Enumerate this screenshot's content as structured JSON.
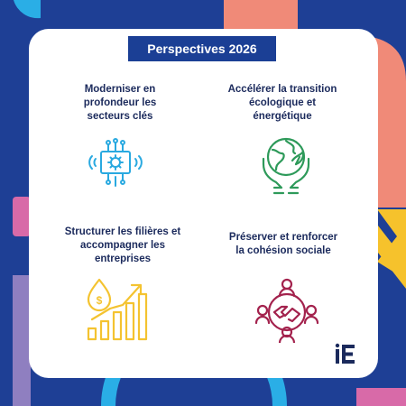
{
  "title": "Perspectives 2026",
  "quadrants": [
    {
      "label": "Moderniser en profondeur les secteurs clés",
      "icon": "digital-circuit-gear-icon",
      "color": "#29a9e0"
    },
    {
      "label": "Accélérer la transition écologique et énergétique",
      "icon": "globe-leaf-hands-icon",
      "color": "#2e9a5a"
    },
    {
      "label": "Structurer les filières et accompagner les entreprises",
      "icon": "money-growth-chart-icon",
      "color": "#f4c330"
    },
    {
      "label": "Préserver et renforcer la cohésion sociale",
      "icon": "handshake-community-icon",
      "color": "#a3224d"
    }
  ],
  "logo": {
    "text": "iE",
    "icon": "ie-logo-icon"
  },
  "colors": {
    "background": "#1e3f95",
    "badge": "#1b3f95",
    "salmon": "#ef8a7a",
    "yellow": "#f6c22c",
    "pink": "#d86aa8",
    "lilac": "#8f7fc0",
    "cyan": "#2aaee6"
  }
}
